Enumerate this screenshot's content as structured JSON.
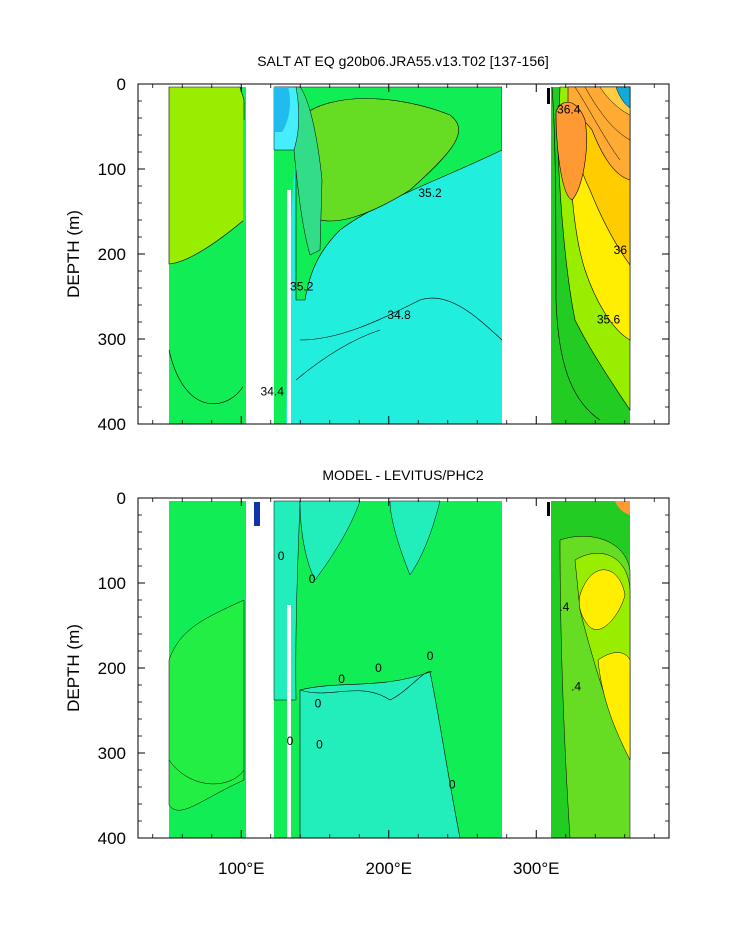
{
  "chart_data": [
    {
      "type": "contour",
      "title": "SALT AT EQ g20b06.JRA55.v13.T02 [137-156]",
      "xlabel": "",
      "ylabel": "DEPTH (m)",
      "xlim": [
        30,
        390
      ],
      "ylim": [
        400,
        0
      ],
      "y_ticks": [
        "0",
        "100",
        "200",
        "300",
        "400"
      ],
      "y_tick_values": [
        0,
        100,
        200,
        300,
        400
      ],
      "x_tick_values": [
        100,
        200,
        300
      ],
      "x_tick_labels": [
        "",
        "",
        ""
      ],
      "land_gaps_lon": [
        [
          97,
          117
        ],
        [
          278,
          313
        ]
      ],
      "contour_labels": [
        {
          "text": "35.2",
          "lon": 228,
          "depth": 128
        },
        {
          "text": "35.2",
          "lon": 141,
          "depth": 238
        },
        {
          "text": "34.8",
          "lon": 207,
          "depth": 272
        },
        {
          "text": "34.4",
          "lon": 121,
          "depth": 362
        },
        {
          "text": "36.4",
          "lon": 322,
          "depth": 30
        },
        {
          "text": "36",
          "lon": 357,
          "depth": 195
        },
        {
          "text": "35.6",
          "lon": 349,
          "depth": 277
        }
      ],
      "color_regions": [
        {
          "color": "#99ee00",
          "note": "western Indian ~35.0",
          "lon": 60,
          "depth": 180
        },
        {
          "color": "#66dd22",
          "note": "Pacific near-surface ~35.2",
          "lon": 180,
          "depth": 140
        },
        {
          "color": "#11ee55",
          "note": "broad 35.0",
          "lon": 220,
          "depth": 60
        },
        {
          "color": "#22eedd",
          "note": "Pacific deep ~34.7",
          "lon": 220,
          "depth": 330
        },
        {
          "color": "#ff9933",
          "note": "Atlantic high salinity ~36.4",
          "lon": 335,
          "depth": 110
        },
        {
          "color": "#ffee00",
          "note": "Atlantic ~35.8",
          "lon": 358,
          "depth": 300
        },
        {
          "color": "#0099ee",
          "note": "western Pacific fresh surface ~34.2",
          "lon": 122,
          "depth": 20
        }
      ]
    },
    {
      "type": "contour",
      "title": "MODEL - LEVITUS/PHC2",
      "xlabel": "",
      "ylabel": "DEPTH (m)",
      "xlim": [
        30,
        390
      ],
      "ylim": [
        400,
        0
      ],
      "y_ticks": [
        "0",
        "100",
        "200",
        "300",
        "400"
      ],
      "y_tick_values": [
        0,
        100,
        200,
        300,
        400
      ],
      "x_tick_values": [
        100,
        200,
        300
      ],
      "x_tick_labels": [
        "100°E",
        "200°E",
        "300°E"
      ],
      "land_gaps_lon": [
        [
          97,
          117
        ],
        [
          278,
          313
        ]
      ],
      "contour_labels": [
        {
          "text": "0",
          "lon": 127,
          "depth": 68
        },
        {
          "text": "0",
          "lon": 148,
          "depth": 95
        },
        {
          "text": "0",
          "lon": 168,
          "depth": 213
        },
        {
          "text": "0",
          "lon": 193,
          "depth": 200
        },
        {
          "text": "0",
          "lon": 228,
          "depth": 186
        },
        {
          "text": "0",
          "lon": 152,
          "depth": 242
        },
        {
          "text": "0",
          "lon": 153,
          "depth": 290
        },
        {
          "text": "0",
          "lon": 133,
          "depth": 286
        },
        {
          "text": "0",
          "lon": 243,
          "depth": 337
        },
        {
          "text": ".4",
          "lon": 319,
          "depth": 128
        },
        {
          "text": ".4",
          "lon": 327,
          "depth": 222
        }
      ],
      "color_regions": [
        {
          "color": "#22ee44",
          "note": "near zero difference",
          "lon": 70,
          "depth": 100
        },
        {
          "color": "#22eedd",
          "note": "slightly negative",
          "lon": 220,
          "depth": 300
        },
        {
          "color": "#88ee22",
          "note": "positive +0.2",
          "lon": 330,
          "depth": 160
        },
        {
          "color": "#ffee00",
          "note": "positive +0.4",
          "lon": 333,
          "depth": 100
        }
      ]
    }
  ]
}
